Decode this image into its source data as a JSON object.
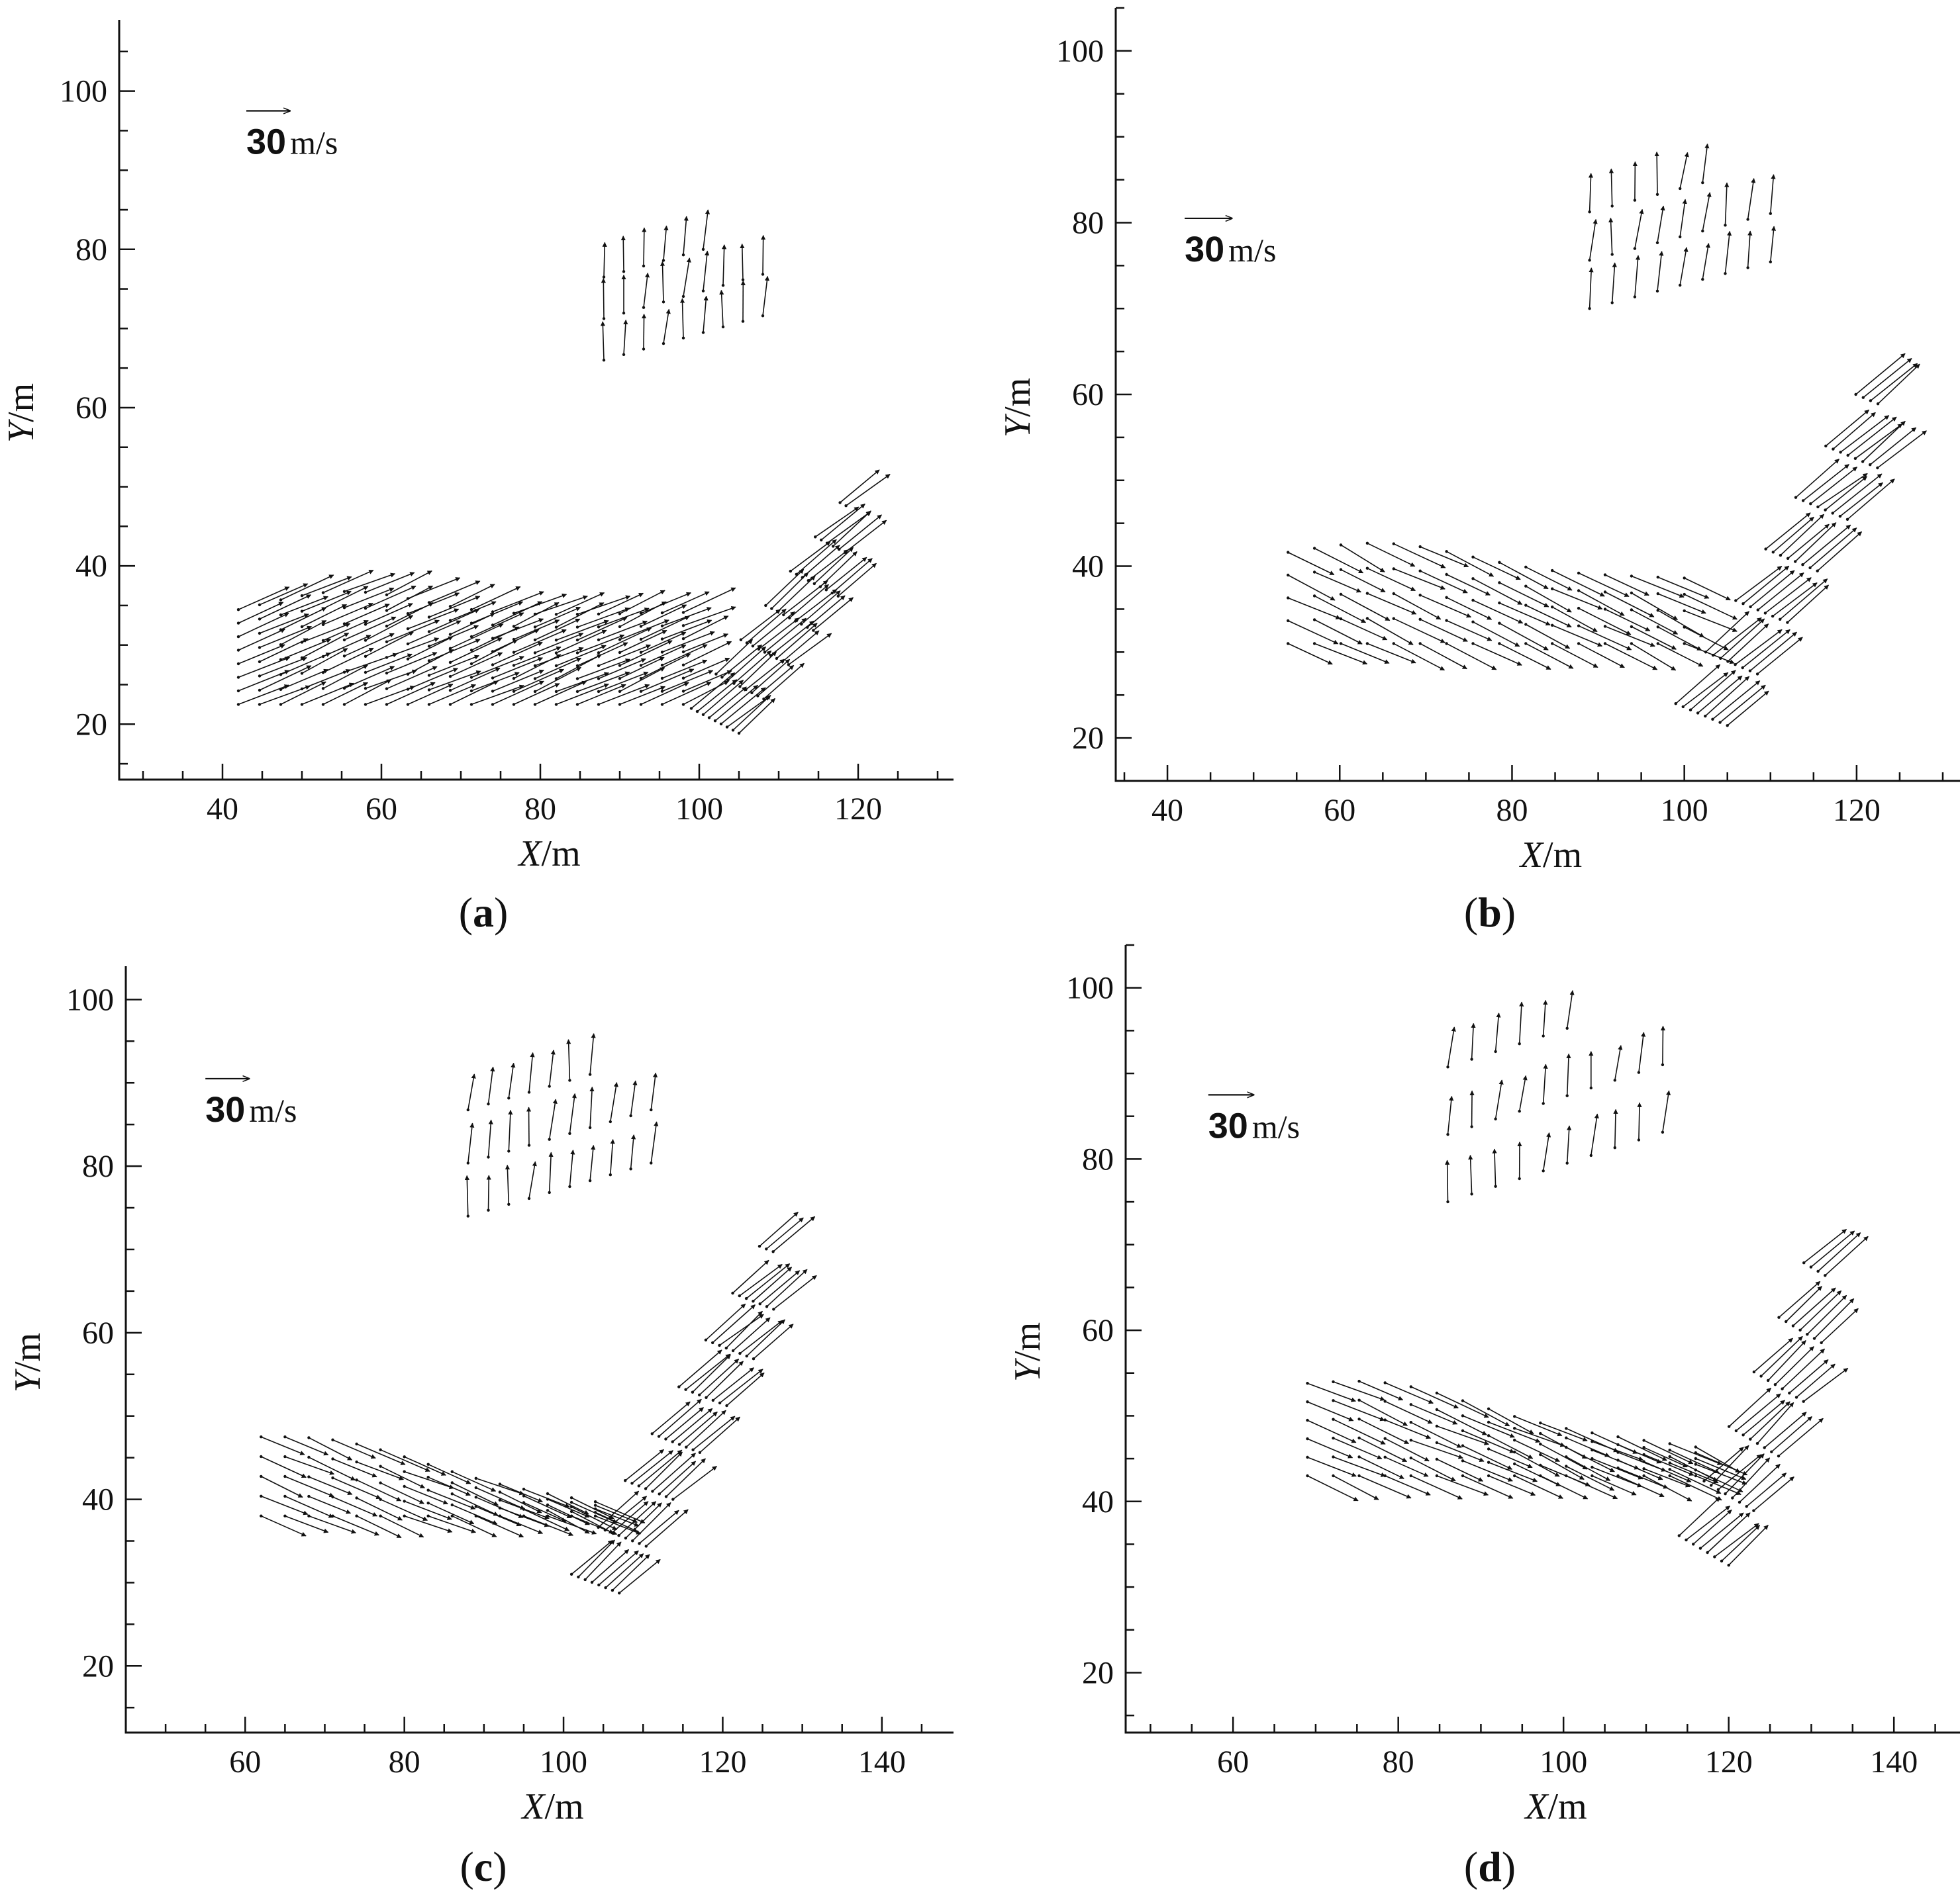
{
  "figure": {
    "chart_data": [
      {
        "type": "vector_field",
        "panel_id": "a",
        "panel_label": {
          "open": "(",
          "letter": "a",
          "close": ")"
        },
        "xlabel": {
          "var": "X",
          "unit": "/m"
        },
        "ylabel": {
          "var": "Y",
          "unit": "/m"
        },
        "xlim": [
          27,
          132
        ],
        "ylim": [
          13,
          109
        ],
        "xticks": [
          40,
          60,
          80,
          100,
          120
        ],
        "yticks": [
          20,
          40,
          60,
          80,
          100
        ],
        "reference_vector": {
          "value": "30",
          "unit": "m/s",
          "x": 43,
          "y": 97.5
        },
        "vector_groups": [
          {
            "x0": 42,
            "x1": 98,
            "nx": 22,
            "y0": 22.5,
            "y1": 33,
            "ny": 8,
            "dx": 6.8,
            "dy": 3.0,
            "slope": 0.02,
            "y_top_amp": 3.5,
            "y_top_peak": 55
          },
          {
            "x0": 99,
            "x1": 118,
            "nx": 9,
            "y0": 22,
            "y1": 61,
            "ny": 10,
            "dx": 5.6,
            "dy": 4.6,
            "slope": 1.25,
            "offset": 24
          },
          {
            "x0": 88,
            "x1": 108,
            "nx": 9,
            "y0": 66,
            "y1": 80,
            "ny": 3,
            "dx": 0.35,
            "dy": 5.2,
            "slope": 0.0,
            "rise": 0.6
          }
        ]
      },
      {
        "type": "vector_field",
        "panel_id": "b",
        "panel_label": {
          "open": "(",
          "letter": "b",
          "close": ")"
        },
        "xlabel": {
          "var": "X",
          "unit": "/m"
        },
        "ylabel": {
          "var": "Y",
          "unit": "/m"
        },
        "xlim": [
          34,
          132
        ],
        "ylim": [
          15,
          105
        ],
        "xticks": [
          40,
          60,
          80,
          100,
          120
        ],
        "yticks": [
          20,
          40,
          60,
          80,
          100
        ],
        "reference_vector": {
          "value": "30",
          "unit": "m/s",
          "x": 42,
          "y": 80.5
        },
        "vector_groups": [
          {
            "x0": 54,
            "x1": 100,
            "nx": 16,
            "y0": 31,
            "y1": 40,
            "ny": 5,
            "dx": 6.2,
            "dy": -3.0,
            "slope": -0.03,
            "y_top_amp": 3.0,
            "y_top_peak": 65
          },
          {
            "x0": 99,
            "x1": 122,
            "nx": 8,
            "y0": 24,
            "y1": 78,
            "ny": 10,
            "dx": 5.8,
            "dy": 4.8,
            "slope": 1.55,
            "offset": 36
          },
          {
            "x0": 89,
            "x1": 110,
            "nx": 9,
            "y0": 70,
            "y1": 85,
            "ny": 3,
            "dx": 0.4,
            "dy": 5.0,
            "slope": 0.0,
            "rise": 0.45
          }
        ]
      },
      {
        "type": "vector_field",
        "panel_id": "c",
        "panel_label": {
          "open": "(",
          "letter": "c",
          "close": ")"
        },
        "xlabel": {
          "var": "X",
          "unit": "/m"
        },
        "ylabel": {
          "var": "Y",
          "unit": "/m"
        },
        "xlim": [
          45,
          149
        ],
        "ylim": [
          12,
          104
        ],
        "xticks": [
          60,
          80,
          100,
          120,
          140
        ],
        "yticks": [
          20,
          40,
          60,
          80,
          100
        ],
        "reference_vector": {
          "value": "30",
          "unit": "m/s",
          "x": 55,
          "y": 90.5
        },
        "vector_groups": [
          {
            "x0": 62,
            "x1": 104,
            "nx": 15,
            "y0": 38,
            "y1": 46,
            "ny": 5,
            "dx": 6.3,
            "dy": -2.6,
            "slope": -0.15,
            "y_top_amp": 2.5,
            "y_top_peak": 72
          },
          {
            "x0": 101,
            "x1": 126,
            "nx": 8,
            "y0": 31,
            "y1": 76,
            "ny": 9,
            "dx": 5.6,
            "dy": 4.6,
            "slope": 1.5,
            "offset": 36
          },
          {
            "x0": 88,
            "x1": 111,
            "nx": 10,
            "y0": 74,
            "y1": 91,
            "ny": 3,
            "dx": 0.35,
            "dy": 5.0,
            "slope": 0.0,
            "rise": 0.5
          }
        ]
      },
      {
        "type": "vector_field",
        "panel_id": "d",
        "panel_label": {
          "open": "(",
          "letter": "d",
          "close": ")"
        },
        "xlabel": {
          "var": "X",
          "unit": "/m"
        },
        "ylabel": {
          "var": "Y",
          "unit": "/m"
        },
        "xlim": [
          47,
          148
        ],
        "ylim": [
          13,
          105
        ],
        "xticks": [
          60,
          80,
          100,
          120,
          140
        ],
        "yticks": [
          20,
          40,
          60,
          80,
          100
        ],
        "reference_vector": {
          "value": "30",
          "unit": "m/s",
          "x": 57,
          "y": 87.5
        },
        "vector_groups": [
          {
            "x0": 69,
            "x1": 116,
            "nx": 16,
            "y0": 43,
            "y1": 52,
            "ny": 6,
            "dx": 6.4,
            "dy": -2.8,
            "slope": -0.12,
            "y_top_amp": 3.0,
            "y_top_peak": 79
          },
          {
            "x0": 114,
            "x1": 131,
            "nx": 8,
            "y0": 36,
            "y1": 87,
            "ny": 9,
            "dx": 5.4,
            "dy": 4.8,
            "slope": 1.9,
            "offset": 38
          },
          {
            "x0": 86,
            "x1": 112,
            "nx": 10,
            "y0": 75,
            "y1": 96,
            "ny": 3,
            "dx": 0.35,
            "dy": 5.0,
            "slope": 0.0,
            "rise": 0.55
          }
        ]
      }
    ]
  }
}
